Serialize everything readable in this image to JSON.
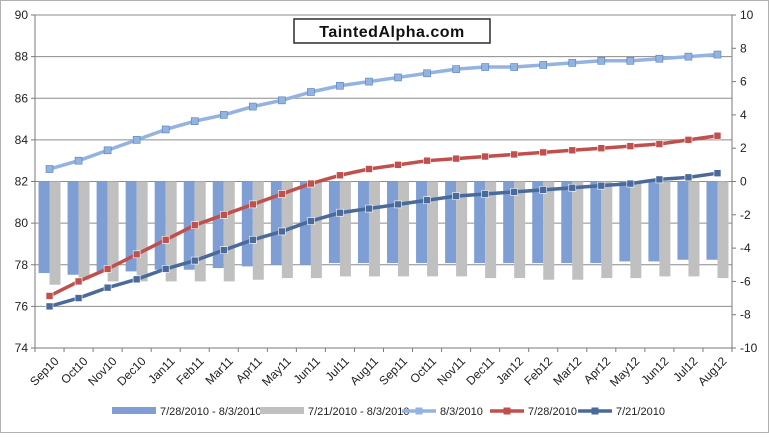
{
  "chart_data": {
    "type": "bar",
    "categories": [
      "Sep10",
      "Oct10",
      "Nov10",
      "Dec10",
      "Jan11",
      "Feb11",
      "Mar11",
      "Apr11",
      "May11",
      "Jun11",
      "Jul11",
      "Aug11",
      "Sep11",
      "Oct11",
      "Nov11",
      "Dec11",
      "Jan12",
      "Feb12",
      "Mar12",
      "Apr12",
      "May12",
      "Jun12",
      "Jul12",
      "Aug12"
    ],
    "left_axis": {
      "ylim": [
        74,
        90
      ],
      "ticks": [
        74,
        76,
        78,
        80,
        82,
        84,
        86,
        88,
        90
      ]
    },
    "right_axis": {
      "ylim": [
        -10,
        10
      ],
      "ticks": [
        -10,
        -8,
        -6,
        -4,
        -2,
        0,
        2,
        4,
        6,
        8,
        10
      ]
    },
    "grid": true,
    "legend_position": "bottom",
    "watermark": "TaintedAlpha.com",
    "series": [
      {
        "name": "7/28/2010 - 8/3/2010",
        "type": "bar",
        "axis": "right",
        "color": "#7f9fd4",
        "values": [
          -5.5,
          -5.6,
          -5.4,
          -5.4,
          -5.3,
          -5.3,
          -5.2,
          -5.1,
          -5.0,
          -5.0,
          -4.9,
          -4.9,
          -4.9,
          -4.9,
          -4.9,
          -4.9,
          -4.9,
          -4.9,
          -4.9,
          -4.9,
          -4.8,
          -4.8,
          -4.7,
          -4.7
        ]
      },
      {
        "name": "7/21/2010 - 8/3/2010",
        "type": "bar",
        "axis": "right",
        "color": "#c0c0c0",
        "values": [
          -6.2,
          -5.9,
          -6.0,
          -6.0,
          -6.0,
          -6.0,
          -6.0,
          -5.9,
          -5.8,
          -5.8,
          -5.7,
          -5.7,
          -5.7,
          -5.7,
          -5.7,
          -5.8,
          -5.8,
          -5.9,
          -5.9,
          -5.8,
          -5.8,
          -5.7,
          -5.7,
          -5.8
        ]
      },
      {
        "name": "8/3/2010",
        "type": "line",
        "axis": "left",
        "color": "#95b3e0",
        "values": [
          82.6,
          83.0,
          83.5,
          84.0,
          84.5,
          84.9,
          85.2,
          85.6,
          85.9,
          86.3,
          86.6,
          86.8,
          87.0,
          87.2,
          87.4,
          87.5,
          87.5,
          87.6,
          87.7,
          87.8,
          87.8,
          87.9,
          88.0,
          88.1
        ]
      },
      {
        "name": "7/28/2010",
        "type": "line",
        "axis": "left",
        "color": "#c0504d",
        "values": [
          76.5,
          77.2,
          77.8,
          78.5,
          79.2,
          79.9,
          80.4,
          80.9,
          81.4,
          81.9,
          82.3,
          82.6,
          82.8,
          83.0,
          83.1,
          83.2,
          83.3,
          83.4,
          83.5,
          83.6,
          83.7,
          83.8,
          84.0,
          84.2
        ]
      },
      {
        "name": "7/21/2010",
        "type": "line",
        "axis": "left",
        "color": "#4a6a9b",
        "values": [
          76.0,
          76.4,
          76.9,
          77.3,
          77.8,
          78.2,
          78.7,
          79.2,
          79.6,
          80.1,
          80.5,
          80.7,
          80.9,
          81.1,
          81.3,
          81.4,
          81.5,
          81.6,
          81.7,
          81.8,
          81.9,
          82.1,
          82.2,
          82.4
        ]
      }
    ]
  }
}
